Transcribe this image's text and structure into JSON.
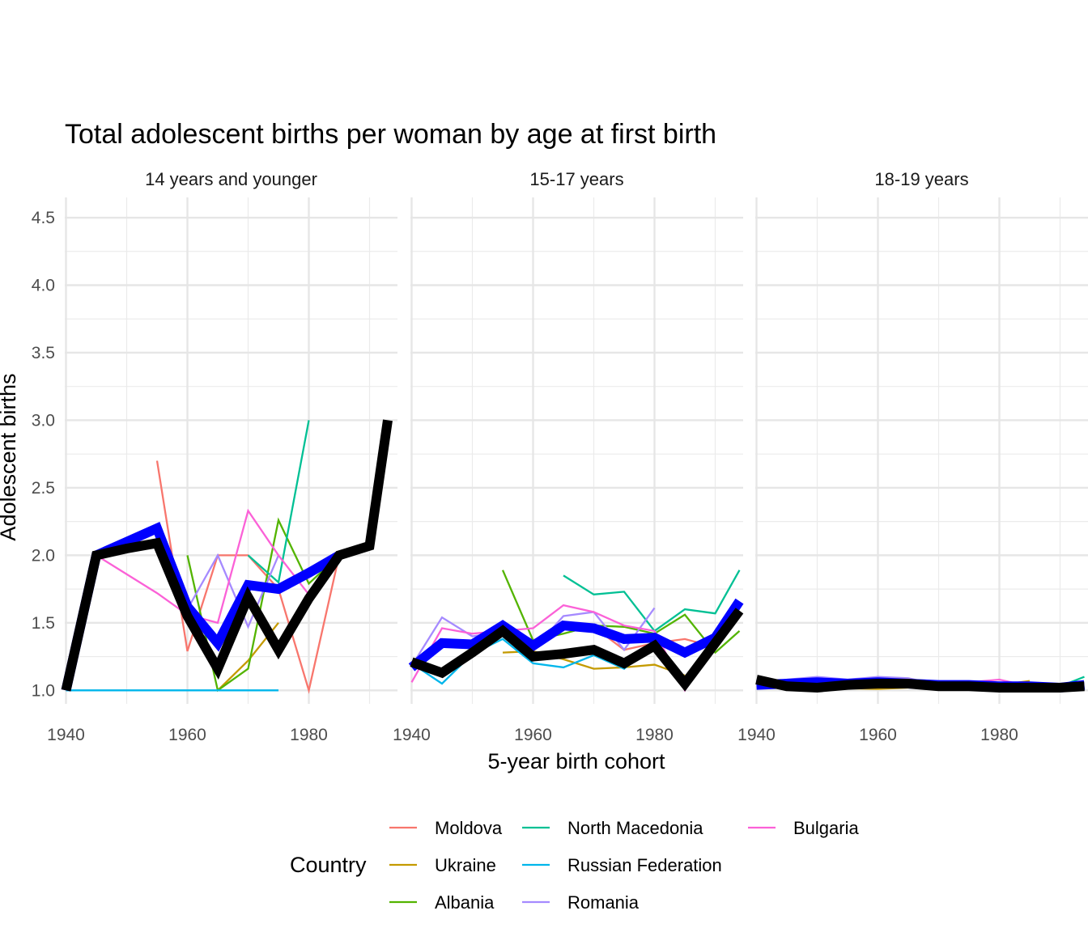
{
  "chart_data": {
    "type": "line",
    "title": "Total adolescent births per woman by age at first birth",
    "xlabel": "5-year birth cohort",
    "ylabel": "Adolescent births",
    "xlim": [
      1939.8,
      1994.6
    ],
    "ylim": [
      0.9,
      4.65
    ],
    "x_ticks": [
      1940,
      1960,
      1980
    ],
    "x_tick_labels": [
      "1940",
      "1960",
      "1980"
    ],
    "y_ticks": [
      1.0,
      1.5,
      2.0,
      2.5,
      3.0,
      3.5,
      4.0,
      4.5
    ],
    "y_tick_labels": [
      "1.0",
      "1.5",
      "2.0",
      "2.5",
      "3.0",
      "3.5",
      "4.0",
      "4.5"
    ],
    "grid": true,
    "legend_title": "Country",
    "legend_position": "bottom",
    "countries": [
      {
        "name": "Moldova",
        "color": "#F8766D"
      },
      {
        "name": "Ukraine",
        "color": "#C49A00"
      },
      {
        "name": "Albania",
        "color": "#53B400"
      },
      {
        "name": "North Macedonia",
        "color": "#00C094"
      },
      {
        "name": "Russian Federation",
        "color": "#00B6EB"
      },
      {
        "name": "Romania",
        "color": "#A58AFF"
      },
      {
        "name": "Bulgaria",
        "color": "#FB61D7"
      }
    ],
    "summary_lines": [
      {
        "name": "blue-summary",
        "color": "#0000FF",
        "width": 12
      },
      {
        "name": "black-summary",
        "color": "#000000",
        "width": 12
      }
    ],
    "panels": [
      {
        "label": "14 years and younger",
        "series": [
          {
            "country": "Moldova",
            "x": [
              1955,
              1960,
              1965,
              1970,
              1975,
              1980,
              1985
            ],
            "y": [
              2.7,
              1.29,
              2.0,
              2.0,
              1.75,
              1.0,
              2.0
            ]
          },
          {
            "country": "Ukraine",
            "x": [
              1965,
              1970,
              1975
            ],
            "y": [
              1.0,
              1.22,
              1.5
            ]
          },
          {
            "country": "Albania",
            "x": [
              1960,
              1965,
              1970,
              1975,
              1980,
              1985
            ],
            "y": [
              2.0,
              1.0,
              1.16,
              2.26,
              1.79,
              2.0
            ]
          },
          {
            "country": "North Macedonia",
            "x": [
              1970,
              1975,
              1980
            ],
            "y": [
              2.0,
              1.8,
              3.0
            ]
          },
          {
            "country": "Russian Federation",
            "x": [
              1940,
              1945,
              1950,
              1955,
              1960,
              1965,
              1970,
              1975
            ],
            "y": [
              1.0,
              1.0,
              1.0,
              1.0,
              1.0,
              1.0,
              1.0,
              1.0
            ]
          },
          {
            "country": "Romania",
            "x": [
              1960,
              1965,
              1970,
              1975
            ],
            "y": [
              1.6,
              2.0,
              1.47,
              2.0
            ]
          },
          {
            "country": "Bulgaria",
            "x": [
              1945,
              1955,
              1960,
              1965,
              1970,
              1975,
              1980
            ],
            "y": [
              2.0,
              1.72,
              1.56,
              1.5,
              2.33,
              2.0,
              1.71
            ]
          },
          {
            "summary": "blue-summary",
            "x": [
              1940,
              1945,
              1950,
              1955,
              1960,
              1965,
              1970,
              1975,
              1980,
              1985
            ],
            "y": [
              1.0,
              2.0,
              2.1,
              2.2,
              1.62,
              1.35,
              1.78,
              1.75,
              1.87,
              2.0
            ]
          },
          {
            "summary": "black-summary",
            "x": [
              1940,
              1945,
              1950,
              1955,
              1960,
              1965,
              1970,
              1975,
              1980,
              1985,
              1990,
              1993
            ],
            "y": [
              1.0,
              2.0,
              2.05,
              2.09,
              1.55,
              1.16,
              1.69,
              1.3,
              1.68,
              2.0,
              2.07,
              3.0
            ]
          }
        ]
      },
      {
        "label": "15-17 years",
        "series": [
          {
            "country": "Moldova",
            "x": [
              1945,
              1950,
              1955,
              1960,
              1965,
              1970,
              1975,
              1980,
              1985,
              1990
            ],
            "y": [
              1.38,
              1.35,
              1.48,
              1.37,
              1.46,
              1.47,
              1.3,
              1.35,
              1.38,
              1.32
            ]
          },
          {
            "country": "Ukraine",
            "x": [
              1955,
              1960,
              1965,
              1970,
              1975,
              1980,
              1985
            ],
            "y": [
              1.28,
              1.29,
              1.23,
              1.16,
              1.17,
              1.19,
              1.11
            ]
          },
          {
            "country": "Albania",
            "x": [
              1955,
              1960,
              1965,
              1970,
              1975,
              1980,
              1985,
              1990,
              1994
            ],
            "y": [
              1.89,
              1.37,
              1.42,
              1.48,
              1.47,
              1.42,
              1.56,
              1.28,
              1.44
            ]
          },
          {
            "country": "North Macedonia",
            "x": [
              1965,
              1970,
              1975,
              1980,
              1985,
              1990,
              1994
            ],
            "y": [
              1.85,
              1.71,
              1.73,
              1.44,
              1.6,
              1.57,
              1.89
            ]
          },
          {
            "country": "Russian Federation",
            "x": [
              1940,
              1945,
              1950,
              1955,
              1960,
              1965,
              1970,
              1975,
              1980
            ],
            "y": [
              1.2,
              1.05,
              1.27,
              1.38,
              1.2,
              1.17,
              1.26,
              1.16,
              1.35
            ]
          },
          {
            "country": "Romania",
            "x": [
              1940,
              1945,
              1950,
              1955,
              1960,
              1965,
              1970,
              1975,
              1980
            ],
            "y": [
              1.18,
              1.54,
              1.4,
              1.43,
              1.3,
              1.55,
              1.58,
              1.3,
              1.61
            ]
          },
          {
            "country": "Bulgaria",
            "x": [
              1940,
              1945,
              1950,
              1955,
              1960,
              1965,
              1970,
              1975,
              1980,
              1985,
              1990
            ],
            "y": [
              1.06,
              1.46,
              1.42,
              1.44,
              1.46,
              1.63,
              1.58,
              1.48,
              1.44,
              1.0,
              1.35
            ]
          },
          {
            "summary": "blue-summary",
            "x": [
              1940,
              1945,
              1950,
              1955,
              1960,
              1965,
              1970,
              1975,
              1980,
              1985,
              1990,
              1994
            ],
            "y": [
              1.17,
              1.35,
              1.34,
              1.48,
              1.33,
              1.48,
              1.46,
              1.38,
              1.39,
              1.28,
              1.39,
              1.66
            ]
          },
          {
            "summary": "black-summary",
            "x": [
              1940,
              1945,
              1950,
              1955,
              1960,
              1965,
              1970,
              1975,
              1980,
              1985,
              1990,
              1994
            ],
            "y": [
              1.21,
              1.13,
              1.28,
              1.44,
              1.25,
              1.27,
              1.3,
              1.2,
              1.33,
              1.05,
              1.35,
              1.59
            ]
          }
        ]
      },
      {
        "label": "18-19 years",
        "series": [
          {
            "country": "Moldova",
            "x": [
              1940,
              1950,
              1960,
              1970,
              1980,
              1990
            ],
            "y": [
              1.04,
              1.05,
              1.05,
              1.03,
              1.04,
              1.03
            ]
          },
          {
            "country": "Ukraine",
            "x": [
              1940,
              1950,
              1960,
              1970,
              1980,
              1985
            ],
            "y": [
              1.03,
              1.02,
              1.01,
              1.03,
              1.04,
              1.07
            ]
          },
          {
            "country": "Albania",
            "x": [
              1955,
              1965,
              1975,
              1985,
              1994
            ],
            "y": [
              1.04,
              1.05,
              1.03,
              1.02,
              1.01
            ]
          },
          {
            "country": "North Macedonia",
            "x": [
              1965,
              1975,
              1985,
              1990,
              1994
            ],
            "y": [
              1.05,
              1.04,
              1.02,
              1.03,
              1.1
            ]
          },
          {
            "country": "Russian Federation",
            "x": [
              1940,
              1950,
              1960,
              1970,
              1980
            ],
            "y": [
              1.03,
              1.05,
              1.04,
              1.03,
              1.04
            ]
          },
          {
            "country": "Romania",
            "x": [
              1940,
              1945,
              1950,
              1955,
              1960,
              1965,
              1970,
              1975,
              1980
            ],
            "y": [
              1.04,
              1.08,
              1.1,
              1.08,
              1.1,
              1.09,
              1.04,
              1.03,
              1.04
            ]
          },
          {
            "country": "Bulgaria",
            "x": [
              1940,
              1950,
              1960,
              1970,
              1980,
              1985
            ],
            "y": [
              1.03,
              1.03,
              1.04,
              1.04,
              1.08,
              1.03
            ]
          },
          {
            "summary": "blue-summary",
            "x": [
              1940,
              1945,
              1950,
              1955,
              1960,
              1965,
              1970,
              1975,
              1980,
              1985,
              1990,
              1994
            ],
            "y": [
              1.04,
              1.05,
              1.06,
              1.05,
              1.06,
              1.05,
              1.04,
              1.04,
              1.03,
              1.03,
              1.02,
              1.04
            ]
          },
          {
            "summary": "black-summary",
            "x": [
              1940,
              1945,
              1950,
              1955,
              1960,
              1965,
              1970,
              1975,
              1980,
              1985,
              1990,
              1994
            ],
            "y": [
              1.08,
              1.03,
              1.02,
              1.04,
              1.05,
              1.05,
              1.03,
              1.03,
              1.02,
              1.02,
              1.02,
              1.03
            ]
          }
        ]
      }
    ]
  }
}
